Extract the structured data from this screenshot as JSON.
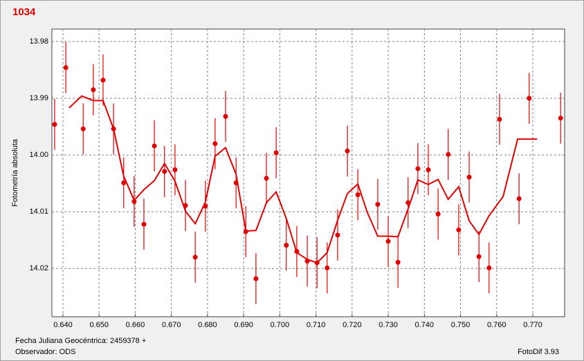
{
  "chart_data": {
    "type": "scatter",
    "title": "1034",
    "x_label": "Fecha Juliana Geocéntrica: 2459378 +",
    "y_label": "Fotometría absoluta",
    "observer": "Observador: ODS",
    "software": "FotoDif 3.93",
    "xlim": [
      0.63694,
      0.77881
    ],
    "ylim": [
      14.0285,
      13.9778
    ],
    "xticks": [
      {
        "value": 0.64,
        "label": "0.640"
      },
      {
        "value": 0.65,
        "label": "0.650"
      },
      {
        "value": 0.66,
        "label": "0.660"
      },
      {
        "value": 0.67,
        "label": "0.670"
      },
      {
        "value": 0.68,
        "label": "0.680"
      },
      {
        "value": 0.69,
        "label": "0.690"
      },
      {
        "value": 0.7,
        "label": "0.700"
      },
      {
        "value": 0.71,
        "label": "0.710"
      },
      {
        "value": 0.72,
        "label": "0.720"
      },
      {
        "value": 0.73,
        "label": "0.730"
      },
      {
        "value": 0.74,
        "label": "0.740"
      },
      {
        "value": 0.75,
        "label": "0.750"
      },
      {
        "value": 0.76,
        "label": "0.760"
      },
      {
        "value": 0.77,
        "label": "0.770"
      }
    ],
    "yticks": [
      13.98,
      13.99,
      {
        "value": 14.0,
        "label": "14.00"
      },
      14.01,
      14.02
    ],
    "grid": true,
    "series": [
      {
        "type": "scatter",
        "color": "#e00000",
        "x": [
          0.6377,
          0.6408,
          0.6456,
          0.6484,
          0.6511,
          0.654,
          0.6568,
          0.6597,
          0.6624,
          0.6653,
          0.6681,
          0.671,
          0.6739,
          0.6766,
          0.6794,
          0.6821,
          0.685,
          0.6879,
          0.6906,
          0.6934,
          0.6963,
          0.699,
          0.7018,
          0.7047,
          0.7076,
          0.7103,
          0.7131,
          0.716,
          0.7187,
          0.7216,
          0.7271,
          0.73,
          0.7327,
          0.7355,
          0.7382,
          0.7411,
          0.7438,
          0.7466,
          0.7495,
          0.7524,
          0.7551,
          0.7579,
          0.7608,
          0.7662,
          0.769,
          0.7777
        ],
        "values": [
          13.9946,
          13.9846,
          13.9954,
          13.9885,
          13.9868,
          13.9954,
          14.0049,
          14.0082,
          14.0122,
          13.9984,
          14.0029,
          14.0026,
          14.0089,
          14.018,
          14.009,
          13.998,
          13.9932,
          14.0049,
          14.0135,
          14.0218,
          14.0041,
          13.9996,
          14.0159,
          14.017,
          14.0187,
          14.019,
          14.0199,
          14.0141,
          13.9993,
          14.007,
          14.0087,
          14.0152,
          14.0189,
          14.0084,
          14.0024,
          14.0026,
          14.0104,
          13.9999,
          14.0132,
          14.0039,
          14.0179,
          14.0199,
          13.9937,
          14.0077,
          13.99,
          13.9935
        ],
        "errors": [
          0.0045,
          0.0045,
          0.0045,
          0.0045,
          0.0045,
          0.0045,
          0.0045,
          0.0045,
          0.0045,
          0.0045,
          0.0045,
          0.0045,
          0.0045,
          0.0045,
          0.0045,
          0.0045,
          0.0045,
          0.0045,
          0.0045,
          0.0045,
          0.0045,
          0.0045,
          0.0045,
          0.0045,
          0.0045,
          0.0045,
          0.0045,
          0.0045,
          0.0045,
          0.0045,
          0.0045,
          0.0045,
          0.0045,
          0.0045,
          0.0045,
          0.0045,
          0.0045,
          0.0045,
          0.0045,
          0.0045,
          0.0045,
          0.0045,
          0.0045,
          0.0045,
          0.0045,
          0.0045
        ]
      },
      {
        "type": "line",
        "color": "#e00000",
        "x": [
          0.6417,
          0.6452,
          0.6484,
          0.6511,
          0.654,
          0.6568,
          0.6597,
          0.6624,
          0.6653,
          0.6681,
          0.671,
          0.6739,
          0.6766,
          0.6794,
          0.6821,
          0.685,
          0.6879,
          0.6906,
          0.6934,
          0.6963,
          0.699,
          0.7018,
          0.7047,
          0.7076,
          0.7103,
          0.7131,
          0.716,
          0.7187,
          0.7216,
          0.7242,
          0.7271,
          0.73,
          0.7327,
          0.7355,
          0.7382,
          0.7411,
          0.7438,
          0.7466,
          0.7495,
          0.7524,
          0.7551,
          0.7579,
          0.7618,
          0.7658,
          0.7712
        ],
        "values": [
          13.9917,
          13.9896,
          13.9904,
          13.9904,
          13.9954,
          14.0037,
          14.008,
          14.0061,
          14.0045,
          14.0015,
          14.0046,
          14.0099,
          14.0121,
          14.0083,
          14.0002,
          13.9987,
          14.0034,
          14.0134,
          14.0133,
          14.0084,
          14.0065,
          14.0112,
          14.0172,
          14.0184,
          14.019,
          14.0172,
          14.0115,
          14.0068,
          14.0051,
          14.0101,
          14.0143,
          14.0143,
          14.0144,
          14.0095,
          14.0044,
          14.0052,
          14.0043,
          14.0078,
          14.0056,
          14.0116,
          14.014,
          14.0107,
          14.0073,
          13.9972,
          13.9972
        ]
      }
    ]
  }
}
